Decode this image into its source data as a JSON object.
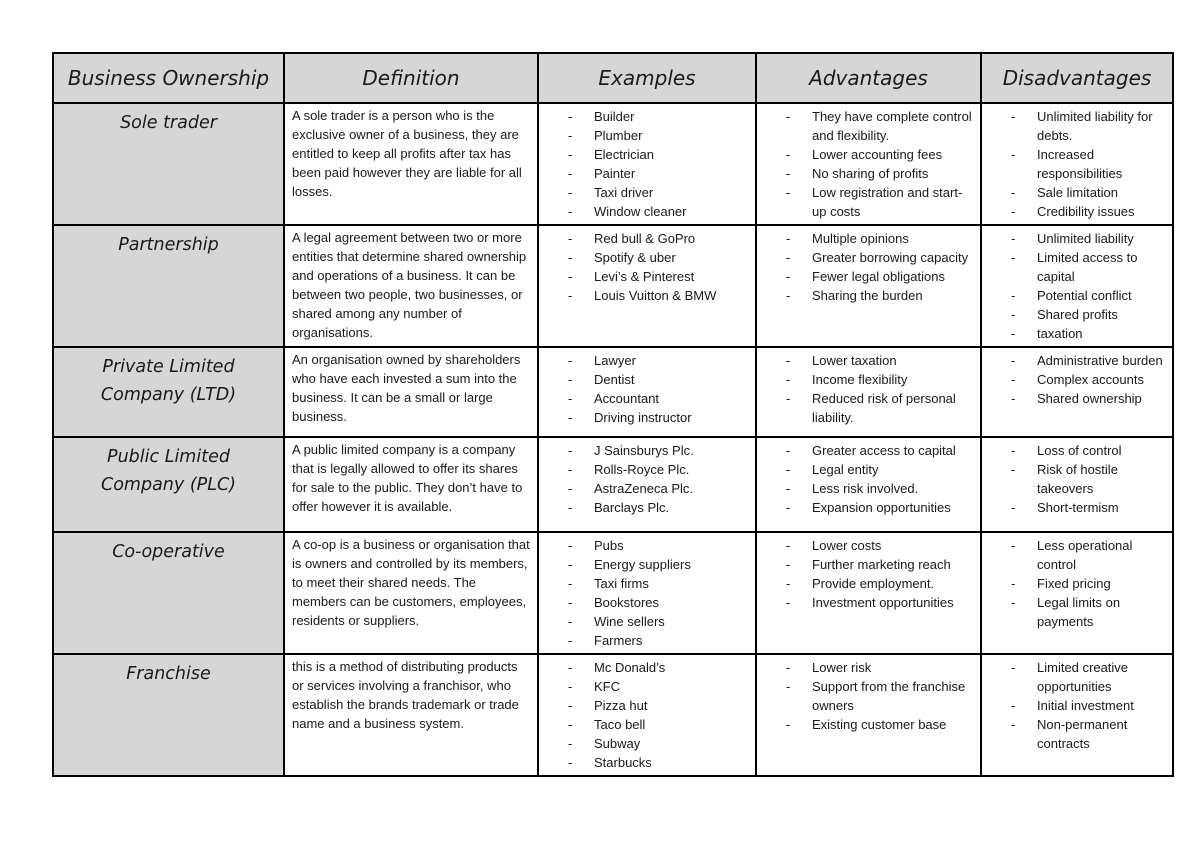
{
  "colors": {
    "cell_shading": "#d6d6d6",
    "border": "#000000",
    "page_background": "#ffffff"
  },
  "table": {
    "bullet_char": "-",
    "headers": [
      "Business Ownership",
      "Definition",
      "Examples",
      "Advantages",
      "Disadvantages"
    ],
    "rows": [
      {
        "name": "Sole trader",
        "definition": "A sole trader is a person who is the exclusive owner of a business, they are entitled to keep all profits after tax has been paid however they are liable for all losses.",
        "examples": [
          "Builder",
          "Plumber",
          "Electrician",
          "Painter",
          "Taxi driver",
          "Window cleaner"
        ],
        "advantages": [
          "They have complete control and flexibility.",
          "Lower accounting fees",
          "No sharing of profits",
          "Low registration and start-up costs"
        ],
        "disadvantages": [
          "Unlimited liability for debts.",
          "Increased responsibilities",
          "Sale limitation",
          "Credibility issues"
        ]
      },
      {
        "name": "Partnership",
        "definition": "A legal agreement between two or more entities that determine shared ownership and operations of a business. It can be between two people, two businesses, or shared among any number of organisations.",
        "examples": [
          "Red bull & GoPro",
          "Spotify & uber",
          "Levi’s & Pinterest",
          "Louis Vuitton & BMW"
        ],
        "advantages": [
          "Multiple opinions",
          "Greater borrowing capacity",
          "Fewer legal obligations",
          "Sharing the burden"
        ],
        "disadvantages": [
          "Unlimited liability",
          "Limited access to capital",
          "Potential conflict",
          "Shared profits",
          "taxation"
        ]
      },
      {
        "name": "Private Limited Company (LTD)",
        "definition": "An organisation owned by shareholders who have each invested a sum into the business. It can be a small or large business.",
        "examples": [
          "Lawyer",
          "Dentist",
          "Accountant",
          "Driving instructor"
        ],
        "advantages": [
          "Lower taxation",
          "Income flexibility",
          "Reduced risk of personal liability."
        ],
        "disadvantages": [
          "Administrative burden",
          "Complex accounts",
          "Shared ownership"
        ]
      },
      {
        "name": "Public Limited Company (PLC)",
        "definition": "A public limited company is a company that is legally allowed to offer its shares for sale to the public. They don’t have to offer however it is available.",
        "examples": [
          "J Sainsburys Plc.",
          "Rolls-Royce Plc.",
          "AstraZeneca Plc.",
          "Barclays Plc."
        ],
        "advantages": [
          "Greater access to capital",
          "Legal entity",
          "Less risk involved.",
          "Expansion opportunities"
        ],
        "disadvantages": [
          "Loss of control",
          "Risk of hostile takeovers",
          "Short-termism"
        ]
      },
      {
        "name": "Co-operative",
        "definition": "A co-op is a business or organisation that is owners and controlled by its members, to meet their shared needs. The members can be customers, employees, residents or suppliers.",
        "examples": [
          "Pubs",
          "Energy suppliers",
          "Taxi firms",
          "Bookstores",
          "Wine sellers",
          "Farmers"
        ],
        "advantages": [
          "Lower costs",
          "Further marketing reach",
          "Provide employment.",
          "Investment opportunities"
        ],
        "disadvantages": [
          "Less operational control",
          "Fixed pricing",
          "Legal limits on payments"
        ]
      },
      {
        "name": "Franchise",
        "definition": "this is a method of distributing products or services involving a franchisor, who establish the brands trademark or trade name and a business system.",
        "examples": [
          "Mc Donald’s",
          "KFC",
          "Pizza hut",
          "Taco bell",
          "Subway",
          "Starbucks"
        ],
        "advantages": [
          "Lower risk",
          "Support from the franchise owners",
          "Existing customer base"
        ],
        "disadvantages": [
          "Limited creative opportunities",
          "Initial investment",
          "Non-permanent contracts"
        ]
      }
    ]
  }
}
